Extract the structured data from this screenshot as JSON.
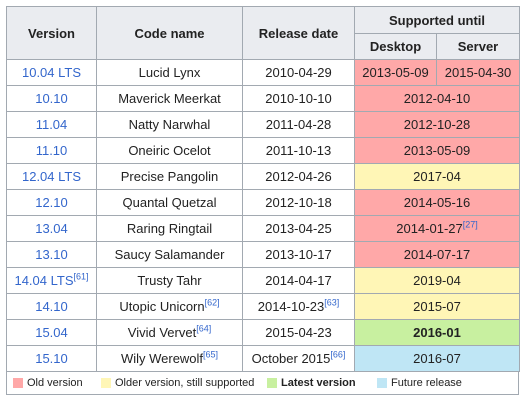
{
  "headers": {
    "version": "Version",
    "code_name": "Code name",
    "release_date": "Release date",
    "supported_until": "Supported until",
    "desktop": "Desktop",
    "server": "Server"
  },
  "rows": [
    {
      "version": "10.04 LTS",
      "version_ref": "",
      "code_name": "Lucid Lynx",
      "code_ref": "",
      "release_date": "2010-04-29",
      "date_ref": "",
      "desktop": "2013-05-09",
      "server": "2015-04-30",
      "support": "",
      "support_ref": "",
      "status": "old",
      "split": true
    },
    {
      "version": "10.10",
      "version_ref": "",
      "code_name": "Maverick Meerkat",
      "code_ref": "",
      "release_date": "2010-10-10",
      "date_ref": "",
      "support": "2012-04-10",
      "support_ref": "",
      "status": "old",
      "split": false
    },
    {
      "version": "11.04",
      "version_ref": "",
      "code_name": "Natty Narwhal",
      "code_ref": "",
      "release_date": "2011-04-28",
      "date_ref": "",
      "support": "2012-10-28",
      "support_ref": "",
      "status": "old",
      "split": false
    },
    {
      "version": "11.10",
      "version_ref": "",
      "code_name": "Oneiric Ocelot",
      "code_ref": "",
      "release_date": "2011-10-13",
      "date_ref": "",
      "support": "2013-05-09",
      "support_ref": "",
      "status": "old",
      "split": false
    },
    {
      "version": "12.04 LTS",
      "version_ref": "",
      "code_name": "Precise Pangolin",
      "code_ref": "",
      "release_date": "2012-04-26",
      "date_ref": "",
      "support": "2017-04",
      "support_ref": "",
      "status": "supp",
      "split": false
    },
    {
      "version": "12.10",
      "version_ref": "",
      "code_name": "Quantal Quetzal",
      "code_ref": "",
      "release_date": "2012-10-18",
      "date_ref": "",
      "support": "2014-05-16",
      "support_ref": "",
      "status": "old",
      "split": false
    },
    {
      "version": "13.04",
      "version_ref": "",
      "code_name": "Raring Ringtail",
      "code_ref": "",
      "release_date": "2013-04-25",
      "date_ref": "",
      "support": "2014-01-27",
      "support_ref": "[27]",
      "status": "old",
      "split": false
    },
    {
      "version": "13.10",
      "version_ref": "",
      "code_name": "Saucy Salamander",
      "code_ref": "",
      "release_date": "2013-10-17",
      "date_ref": "",
      "support": "2014-07-17",
      "support_ref": "",
      "status": "old",
      "split": false
    },
    {
      "version": "14.04 LTS",
      "version_ref": "[61]",
      "code_name": "Trusty Tahr",
      "code_ref": "",
      "release_date": "2014-04-17",
      "date_ref": "",
      "support": "2019-04",
      "support_ref": "",
      "status": "supp",
      "split": false
    },
    {
      "version": "14.10",
      "version_ref": "",
      "code_name": "Utopic Unicorn",
      "code_ref": "[62]",
      "release_date": "2014-10-23",
      "date_ref": "[63]",
      "support": "2015-07",
      "support_ref": "",
      "status": "supp",
      "split": false
    },
    {
      "version": "15.04",
      "version_ref": "",
      "code_name": "Vivid Vervet",
      "code_ref": "[64]",
      "release_date": "2015-04-23",
      "date_ref": "",
      "support": "2016-01",
      "support_ref": "",
      "status": "latest",
      "split": false
    },
    {
      "version": "15.10",
      "version_ref": "",
      "code_name": "Wily Werewolf",
      "code_ref": "[65]",
      "release_date": "October 2015",
      "date_ref": "[66]",
      "support": "2016-07",
      "support_ref": "",
      "status": "future",
      "split": false
    }
  ],
  "legend": {
    "old": "Old version",
    "supported": "Older version, still supported",
    "latest": "Latest version",
    "future": "Future release"
  },
  "colors": {
    "old": "#ffa8a8",
    "supported": "#fff6b6",
    "latest": "#c8f0a0",
    "future": "#bfe6f5",
    "header": "#eaecf0",
    "link": "#3366cc"
  }
}
